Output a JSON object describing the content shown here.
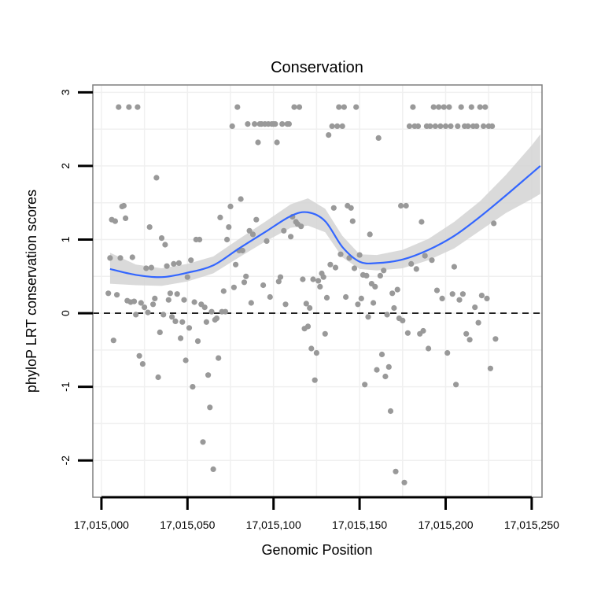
{
  "chart_data": {
    "type": "scatter",
    "title": "Conservation",
    "xlabel": "Genomic Position",
    "ylabel": "phyloP LRT conservation scores",
    "xlim": [
      17014995,
      17015256
    ],
    "ylim": [
      -2.5,
      3.1
    ],
    "x_ticks": [
      17015000,
      17015050,
      17015100,
      17015150,
      17015200,
      17015250
    ],
    "x_tick_labels": [
      "17,015,000",
      "17,015,050",
      "17,015,100",
      "17,015,150",
      "17,015,200",
      "17,015,250"
    ],
    "y_ticks": [
      -2,
      -1,
      0,
      1,
      2,
      3
    ],
    "y_tick_labels": [
      "-2",
      "-1",
      "0",
      "1",
      "2",
      "3"
    ],
    "reference_line": {
      "y": 0,
      "style": "dashed"
    },
    "grid": true,
    "colors": {
      "points": "#999999",
      "smooth": "#3366ff",
      "ribbon": "#d3d3d3",
      "border": "#7f7f7f",
      "grid": "#f0f0f0"
    },
    "series": [
      {
        "name": "scores",
        "points": [
          [
            17015004,
            0.27
          ],
          [
            17015005,
            0.75
          ],
          [
            17015006,
            1.27
          ],
          [
            17015007,
            -0.37
          ],
          [
            17015008,
            1.25
          ],
          [
            17015009,
            0.25
          ],
          [
            17015010,
            2.8
          ],
          [
            17015011,
            0.75
          ],
          [
            17015012,
            1.45
          ],
          [
            17015013,
            1.46
          ],
          [
            17015014,
            1.29
          ],
          [
            17015015,
            0.17
          ],
          [
            17015016,
            2.8
          ],
          [
            17015017,
            0.15
          ],
          [
            17015018,
            0.76
          ],
          [
            17015019,
            0.16
          ],
          [
            17015020,
            -0.02
          ],
          [
            17015021,
            2.8
          ],
          [
            17015022,
            -0.58
          ],
          [
            17015023,
            0.14
          ],
          [
            17015024,
            -0.69
          ],
          [
            17015025,
            0.08
          ],
          [
            17015026,
            0.61
          ],
          [
            17015027,
            0.01
          ],
          [
            17015028,
            1.17
          ],
          [
            17015029,
            0.62
          ],
          [
            17015030,
            0.12
          ],
          [
            17015031,
            0.2
          ],
          [
            17015032,
            1.84
          ],
          [
            17015033,
            -0.87
          ],
          [
            17015034,
            -0.26
          ],
          [
            17015035,
            1.02
          ],
          [
            17015036,
            -0.02
          ],
          [
            17015037,
            0.93
          ],
          [
            17015038,
            0.64
          ],
          [
            17015039,
            0.18
          ],
          [
            17015040,
            0.27
          ],
          [
            17015041,
            -0.05
          ],
          [
            17015042,
            0.67
          ],
          [
            17015043,
            -0.11
          ],
          [
            17015044,
            0.26
          ],
          [
            17015045,
            0.68
          ],
          [
            17015046,
            -0.34
          ],
          [
            17015047,
            -0.12
          ],
          [
            17015048,
            0.18
          ],
          [
            17015049,
            -0.64
          ],
          [
            17015050,
            0.49
          ],
          [
            17015051,
            -0.2
          ],
          [
            17015052,
            0.72
          ],
          [
            17015053,
            -1.0
          ],
          [
            17015054,
            0.15
          ],
          [
            17015055,
            1.0
          ],
          [
            17015056,
            -0.38
          ],
          [
            17015057,
            1.0
          ],
          [
            17015058,
            0.12
          ],
          [
            17015059,
            -1.75
          ],
          [
            17015060,
            0.08
          ],
          [
            17015061,
            -0.12
          ],
          [
            17015062,
            -0.84
          ],
          [
            17015063,
            -1.28
          ],
          [
            17015064,
            0.02
          ],
          [
            17015065,
            -2.12
          ],
          [
            17015066,
            -0.09
          ],
          [
            17015067,
            -0.07
          ],
          [
            17015068,
            -0.61
          ],
          [
            17015069,
            1.3
          ],
          [
            17015070,
            0.02
          ],
          [
            17015071,
            0.3
          ],
          [
            17015072,
            0.02
          ],
          [
            17015073,
            1.0
          ],
          [
            17015074,
            1.17
          ],
          [
            17015075,
            1.45
          ],
          [
            17015076,
            2.54
          ],
          [
            17015077,
            0.35
          ],
          [
            17015078,
            0.66
          ],
          [
            17015079,
            2.8
          ],
          [
            17015080,
            0.85
          ],
          [
            17015081,
            1.55
          ],
          [
            17015082,
            0.85
          ],
          [
            17015083,
            0.42
          ],
          [
            17015084,
            0.5
          ],
          [
            17015085,
            2.57
          ],
          [
            17015086,
            1.12
          ],
          [
            17015087,
            0.14
          ],
          [
            17015088,
            1.07
          ],
          [
            17015089,
            2.57
          ],
          [
            17015090,
            1.27
          ],
          [
            17015091,
            2.32
          ],
          [
            17015092,
            2.57
          ],
          [
            17015093,
            2.57
          ],
          [
            17015094,
            0.38
          ],
          [
            17015095,
            2.57
          ],
          [
            17015096,
            0.98
          ],
          [
            17015097,
            2.57
          ],
          [
            17015098,
            0.22
          ],
          [
            17015099,
            2.57
          ],
          [
            17015100,
            2.57
          ],
          [
            17015101,
            2.57
          ],
          [
            17015102,
            2.32
          ],
          [
            17015103,
            0.43
          ],
          [
            17015104,
            0.49
          ],
          [
            17015105,
            2.57
          ],
          [
            17015106,
            1.12
          ],
          [
            17015107,
            0.12
          ],
          [
            17015108,
            2.57
          ],
          [
            17015109,
            2.57
          ],
          [
            17015110,
            1.04
          ],
          [
            17015111,
            1.31
          ],
          [
            17015112,
            2.8
          ],
          [
            17015113,
            1.24
          ],
          [
            17015114,
            1.21
          ],
          [
            17015115,
            2.8
          ],
          [
            17015116,
            1.18
          ],
          [
            17015117,
            0.46
          ],
          [
            17015118,
            -0.21
          ],
          [
            17015119,
            0.13
          ],
          [
            17015120,
            -0.18
          ],
          [
            17015121,
            0.07
          ],
          [
            17015122,
            -0.48
          ],
          [
            17015123,
            0.46
          ],
          [
            17015124,
            -0.91
          ],
          [
            17015125,
            -0.54
          ],
          [
            17015126,
            0.44
          ],
          [
            17015127,
            0.36
          ],
          [
            17015128,
            0.54
          ],
          [
            17015129,
            0.49
          ],
          [
            17015130,
            -0.28
          ],
          [
            17015131,
            0.21
          ],
          [
            17015132,
            2.42
          ],
          [
            17015133,
            0.66
          ],
          [
            17015134,
            2.54
          ],
          [
            17015135,
            1.43
          ],
          [
            17015136,
            0.62
          ],
          [
            17015137,
            2.54
          ],
          [
            17015138,
            2.8
          ],
          [
            17015139,
            0.8
          ],
          [
            17015140,
            2.54
          ],
          [
            17015141,
            2.8
          ],
          [
            17015142,
            0.22
          ],
          [
            17015143,
            1.46
          ],
          [
            17015144,
            0.75
          ],
          [
            17015145,
            1.43
          ],
          [
            17015146,
            1.25
          ],
          [
            17015147,
            0.61
          ],
          [
            17015148,
            2.8
          ],
          [
            17015149,
            0.12
          ],
          [
            17015150,
            0.79
          ],
          [
            17015151,
            0.2
          ],
          [
            17015152,
            0.52
          ],
          [
            17015153,
            -0.97
          ],
          [
            17015154,
            0.51
          ],
          [
            17015155,
            -0.05
          ],
          [
            17015156,
            1.07
          ],
          [
            17015157,
            0.4
          ],
          [
            17015158,
            0.14
          ],
          [
            17015159,
            0.36
          ],
          [
            17015160,
            -0.77
          ],
          [
            17015161,
            2.38
          ],
          [
            17015162,
            0.51
          ],
          [
            17015163,
            -0.56
          ],
          [
            17015164,
            0.58
          ],
          [
            17015165,
            -0.86
          ],
          [
            17015166,
            -0.02
          ],
          [
            17015167,
            -0.73
          ],
          [
            17015168,
            -1.33
          ],
          [
            17015169,
            0.27
          ],
          [
            17015170,
            0.07
          ],
          [
            17015171,
            -2.15
          ],
          [
            17015172,
            0.32
          ],
          [
            17015173,
            -0.07
          ],
          [
            17015174,
            1.46
          ],
          [
            17015175,
            -0.1
          ],
          [
            17015176,
            -2.3
          ],
          [
            17015177,
            1.46
          ],
          [
            17015178,
            -0.27
          ],
          [
            17015179,
            2.54
          ],
          [
            17015180,
            0.67
          ],
          [
            17015181,
            2.8
          ],
          [
            17015182,
            2.54
          ],
          [
            17015183,
            0.6
          ],
          [
            17015184,
            2.54
          ],
          [
            17015185,
            -0.28
          ],
          [
            17015186,
            1.24
          ],
          [
            17015187,
            -0.24
          ],
          [
            17015188,
            0.78
          ],
          [
            17015189,
            2.54
          ],
          [
            17015190,
            -0.48
          ],
          [
            17015191,
            2.54
          ],
          [
            17015192,
            0.72
          ],
          [
            17015193,
            2.8
          ],
          [
            17015194,
            2.54
          ],
          [
            17015195,
            0.31
          ],
          [
            17015196,
            2.8
          ],
          [
            17015197,
            2.54
          ],
          [
            17015198,
            0.2
          ],
          [
            17015199,
            2.8
          ],
          [
            17015200,
            2.54
          ],
          [
            17015201,
            -0.54
          ],
          [
            17015202,
            2.8
          ],
          [
            17015203,
            2.54
          ],
          [
            17015204,
            0.26
          ],
          [
            17015205,
            0.63
          ],
          [
            17015206,
            -0.97
          ],
          [
            17015207,
            2.54
          ],
          [
            17015208,
            0.18
          ],
          [
            17015209,
            2.8
          ],
          [
            17015210,
            0.26
          ],
          [
            17015211,
            2.54
          ],
          [
            17015212,
            -0.28
          ],
          [
            17015213,
            2.54
          ],
          [
            17015214,
            -0.36
          ],
          [
            17015215,
            2.8
          ],
          [
            17015216,
            2.54
          ],
          [
            17015217,
            0.08
          ],
          [
            17015218,
            2.54
          ],
          [
            17015219,
            -0.13
          ],
          [
            17015220,
            2.8
          ],
          [
            17015221,
            0.24
          ],
          [
            17015222,
            2.54
          ],
          [
            17015223,
            2.8
          ],
          [
            17015224,
            0.2
          ],
          [
            17015225,
            2.54
          ],
          [
            17015226,
            -0.75
          ],
          [
            17015227,
            2.54
          ],
          [
            17015228,
            1.22
          ],
          [
            17015229,
            -0.35
          ]
        ]
      }
    ],
    "smooth_fit": {
      "x": [
        17015005,
        17015020,
        17015035,
        17015050,
        17015065,
        17015080,
        17015095,
        17015110,
        17015120,
        17015130,
        17015140,
        17015150,
        17015160,
        17015175,
        17015190,
        17015205,
        17015220,
        17015235,
        17015250,
        17015255
      ],
      "y": [
        0.6,
        0.52,
        0.49,
        0.55,
        0.65,
        0.88,
        1.1,
        1.32,
        1.37,
        1.25,
        0.9,
        0.7,
        0.68,
        0.73,
        0.86,
        1.05,
        1.31,
        1.6,
        1.9,
        2.0
      ],
      "lower": [
        0.4,
        0.38,
        0.37,
        0.43,
        0.54,
        0.76,
        0.97,
        1.16,
        1.19,
        1.1,
        0.76,
        0.6,
        0.58,
        0.61,
        0.72,
        0.88,
        1.12,
        1.36,
        1.55,
        1.62
      ],
      "upper": [
        0.82,
        0.66,
        0.61,
        0.67,
        0.77,
        1.01,
        1.24,
        1.48,
        1.56,
        1.42,
        1.05,
        0.8,
        0.79,
        0.86,
        1.01,
        1.24,
        1.52,
        1.88,
        2.28,
        2.43
      ]
    }
  }
}
